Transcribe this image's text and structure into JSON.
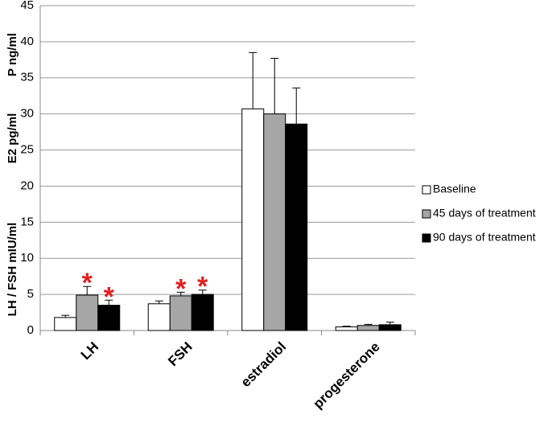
{
  "chart_data": {
    "type": "bar",
    "ylabel": [
      "LH / FSH  mIU/ml",
      "E2  pg/ml",
      "P ng/ml"
    ],
    "categories": [
      "LH",
      "FSH",
      "estradiol",
      "progesterone"
    ],
    "series": [
      {
        "name": "Baseline",
        "color": "#ffffff",
        "values": [
          1.8,
          3.7,
          30.7,
          0.5
        ],
        "errors": [
          0.3,
          0.4,
          7.8,
          0.1
        ]
      },
      {
        "name": "45 days of treatment",
        "color": "#a6a6a6",
        "values": [
          4.9,
          4.8,
          30.0,
          0.7
        ],
        "errors": [
          1.2,
          0.5,
          7.7,
          0.15
        ]
      },
      {
        "name": "90 days of treatment",
        "color": "#000000",
        "values": [
          3.5,
          5.0,
          28.6,
          0.8
        ],
        "errors": [
          0.7,
          0.6,
          5.0,
          0.35
        ]
      }
    ],
    "annotations": [
      {
        "text": "*",
        "category": "LH",
        "series": "45 days of treatment"
      },
      {
        "text": "*",
        "category": "LH",
        "series": "90 days of treatment"
      },
      {
        "text": "*",
        "category": "FSH",
        "series": "45 days of treatment"
      },
      {
        "text": "*",
        "category": "FSH",
        "series": "90 days of treatment"
      }
    ],
    "ylim": [
      0,
      45
    ],
    "yticks": [
      0,
      5,
      10,
      15,
      20,
      25,
      30,
      35,
      40,
      45
    ],
    "grid": true,
    "legend": "right"
  }
}
